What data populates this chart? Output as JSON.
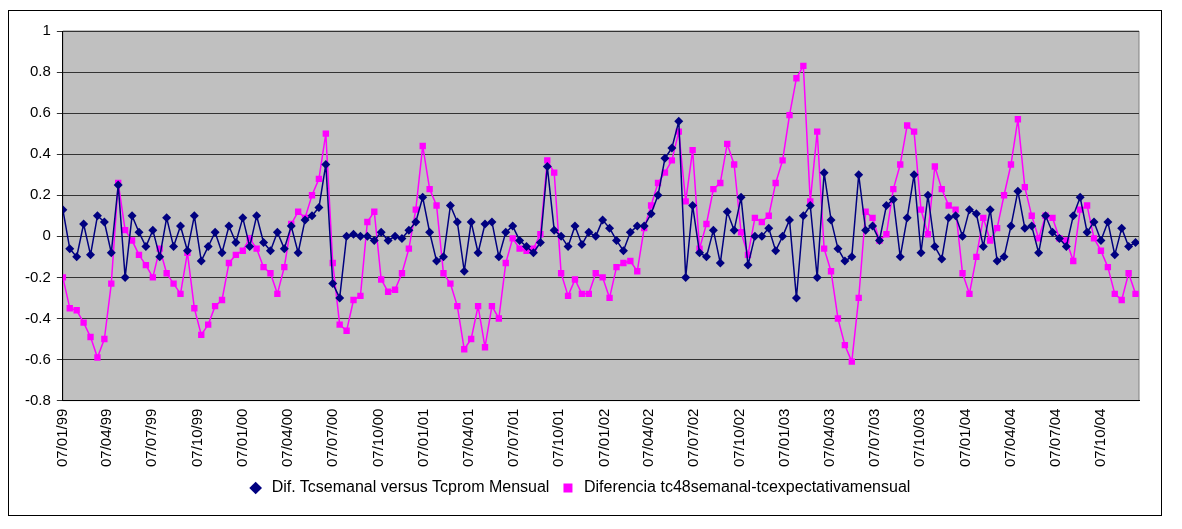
{
  "chart_data": {
    "type": "line",
    "x": [
      "1999-01-07",
      "1999-01-21",
      "1999-02-04",
      "1999-02-18",
      "1999-03-04",
      "1999-03-18",
      "1999-04-01",
      "1999-04-15",
      "1999-04-29",
      "1999-05-13",
      "1999-05-27",
      "1999-06-10",
      "1999-06-24",
      "1999-07-08",
      "1999-07-22",
      "1999-08-05",
      "1999-08-19",
      "1999-09-02",
      "1999-09-16",
      "1999-09-30",
      "1999-10-14",
      "1999-10-28",
      "1999-11-11",
      "1999-11-25",
      "1999-12-09",
      "1999-12-23",
      "2000-01-06",
      "2000-01-20",
      "2000-02-03",
      "2000-02-17",
      "2000-03-02",
      "2000-03-16",
      "2000-03-30",
      "2000-04-13",
      "2000-04-27",
      "2000-05-11",
      "2000-05-25",
      "2000-06-08",
      "2000-06-22",
      "2000-07-06",
      "2000-07-20",
      "2000-08-03",
      "2000-08-17",
      "2000-08-31",
      "2000-09-14",
      "2000-09-28",
      "2000-10-12",
      "2000-10-26",
      "2000-11-09",
      "2000-11-23",
      "2000-12-07",
      "2000-12-21",
      "2001-01-04",
      "2001-01-18",
      "2001-02-01",
      "2001-02-15",
      "2001-03-01",
      "2001-03-15",
      "2001-03-29",
      "2001-04-12",
      "2001-04-26",
      "2001-05-10",
      "2001-05-24",
      "2001-06-07",
      "2001-06-21",
      "2001-07-05",
      "2001-07-19",
      "2001-08-02",
      "2001-08-16",
      "2001-08-30",
      "2001-09-13",
      "2001-09-27",
      "2001-10-11",
      "2001-10-25",
      "2001-11-08",
      "2001-11-22",
      "2001-12-06",
      "2001-12-20",
      "2002-01-03",
      "2002-01-17",
      "2002-01-31",
      "2002-02-14",
      "2002-02-28",
      "2002-03-14",
      "2002-03-28",
      "2002-04-11",
      "2002-04-25",
      "2002-05-09",
      "2002-05-23",
      "2002-06-06",
      "2002-06-20",
      "2002-07-04",
      "2002-07-18",
      "2002-08-01",
      "2002-08-15",
      "2002-08-29",
      "2002-09-12",
      "2002-09-26",
      "2002-10-10",
      "2002-10-24",
      "2002-11-07",
      "2002-11-21",
      "2002-12-05",
      "2002-12-19",
      "2003-01-02",
      "2003-01-16",
      "2003-01-30",
      "2003-02-13",
      "2003-02-27",
      "2003-03-13",
      "2003-03-27",
      "2003-04-10",
      "2003-04-24",
      "2003-05-08",
      "2003-05-22",
      "2003-06-05",
      "2003-06-19",
      "2003-07-03",
      "2003-07-17",
      "2003-07-31",
      "2003-08-14",
      "2003-08-28",
      "2003-09-11",
      "2003-09-25",
      "2003-10-09",
      "2003-10-23",
      "2003-11-06",
      "2003-11-20",
      "2003-12-04",
      "2003-12-18",
      "2004-01-01",
      "2004-01-15",
      "2004-01-29",
      "2004-02-12",
      "2004-02-26",
      "2004-03-11",
      "2004-03-25",
      "2004-04-08",
      "2004-04-22",
      "2004-05-06",
      "2004-05-20",
      "2004-06-03",
      "2004-06-17",
      "2004-07-01",
      "2004-07-15",
      "2004-07-29",
      "2004-08-12",
      "2004-08-26",
      "2004-09-09",
      "2004-09-23",
      "2004-10-07",
      "2004-10-21",
      "2004-11-04",
      "2004-11-18",
      "2004-12-02",
      "2004-12-16"
    ],
    "series": [
      {
        "name": "Dif. Tcsemanal versus Tcprom Mensual",
        "color": "#000080",
        "marker": "diamond",
        "values": [
          0.13,
          -0.06,
          -0.1,
          0.06,
          -0.09,
          0.1,
          0.07,
          -0.08,
          0.25,
          -0.2,
          0.1,
          0.02,
          -0.05,
          0.03,
          -0.1,
          0.09,
          -0.05,
          0.05,
          -0.07,
          0.1,
          -0.12,
          -0.05,
          0.02,
          -0.08,
          0.05,
          -0.03,
          0.09,
          -0.05,
          0.1,
          -0.03,
          -0.07,
          0.02,
          -0.06,
          0.05,
          -0.08,
          0.08,
          0.1,
          0.14,
          0.35,
          -0.23,
          -0.3,
          0.0,
          0.01,
          0.0,
          0.0,
          -0.02,
          0.02,
          -0.02,
          0.0,
          -0.01,
          0.03,
          0.07,
          0.19,
          0.02,
          -0.12,
          -0.1,
          0.15,
          0.07,
          -0.17,
          0.07,
          -0.08,
          0.06,
          0.07,
          -0.1,
          0.02,
          0.05,
          -0.02,
          -0.05,
          -0.08,
          -0.03,
          0.34,
          0.03,
          0.0,
          -0.05,
          0.05,
          -0.04,
          0.02,
          0.0,
          0.08,
          0.04,
          -0.02,
          -0.07,
          0.02,
          0.05,
          0.05,
          0.11,
          0.2,
          0.38,
          0.43,
          0.56,
          -0.2,
          0.15,
          -0.08,
          -0.1,
          0.03,
          -0.13,
          0.12,
          0.03,
          0.19,
          -0.14,
          0.0,
          0.0,
          0.04,
          -0.07,
          0.0,
          0.08,
          -0.3,
          0.1,
          0.15,
          -0.2,
          0.31,
          0.08,
          -0.06,
          -0.12,
          -0.1,
          0.3,
          0.03,
          0.05,
          -0.02,
          0.15,
          0.18,
          -0.1,
          0.09,
          0.3,
          -0.08,
          0.2,
          -0.05,
          -0.11,
          0.09,
          0.1,
          0.0,
          0.13,
          0.11,
          -0.05,
          0.13,
          -0.12,
          -0.1,
          0.05,
          0.22,
          0.04,
          0.05,
          -0.08,
          0.1,
          0.02,
          -0.01,
          -0.05,
          0.1,
          0.19,
          0.02,
          0.07,
          -0.02,
          0.07,
          -0.09,
          0.04,
          -0.05,
          -0.03
        ]
      },
      {
        "name": "Diferencia tc48semanal-tcexpectativamensual",
        "color": "#ff00ff",
        "marker": "square",
        "values": [
          -0.2,
          -0.35,
          -0.36,
          -0.42,
          -0.49,
          -0.59,
          -0.5,
          -0.23,
          0.26,
          0.03,
          -0.02,
          -0.09,
          -0.14,
          -0.2,
          -0.06,
          -0.18,
          -0.23,
          -0.28,
          -0.08,
          -0.35,
          -0.48,
          -0.43,
          -0.34,
          -0.31,
          -0.13,
          -0.09,
          -0.07,
          -0.01,
          -0.06,
          -0.15,
          -0.18,
          -0.28,
          -0.15,
          0.06,
          0.12,
          0.09,
          0.2,
          0.28,
          0.5,
          -0.13,
          -0.43,
          -0.46,
          -0.31,
          -0.29,
          0.07,
          0.12,
          -0.21,
          -0.27,
          -0.26,
          -0.18,
          -0.06,
          0.13,
          0.44,
          0.23,
          0.15,
          -0.18,
          -0.23,
          -0.34,
          -0.55,
          -0.5,
          -0.34,
          -0.54,
          -0.34,
          -0.4,
          -0.13,
          -0.01,
          -0.06,
          -0.07,
          -0.06,
          0.01,
          0.37,
          0.31,
          -0.18,
          -0.29,
          -0.21,
          -0.28,
          -0.28,
          -0.18,
          -0.2,
          -0.3,
          -0.15,
          -0.13,
          -0.12,
          -0.17,
          0.04,
          0.15,
          0.26,
          0.31,
          0.37,
          0.51,
          0.17,
          0.42,
          -0.06,
          0.06,
          0.23,
          0.26,
          0.45,
          0.35,
          0.02,
          -0.09,
          0.09,
          0.07,
          0.1,
          0.26,
          0.37,
          0.59,
          0.77,
          0.83,
          0.17,
          0.51,
          -0.06,
          -0.17,
          -0.4,
          -0.53,
          -0.61,
          -0.3,
          0.12,
          0.09,
          -0.02,
          0.01,
          0.23,
          0.35,
          0.54,
          0.51,
          0.13,
          0.01,
          0.34,
          0.23,
          0.15,
          0.13,
          -0.18,
          -0.28,
          -0.1,
          0.09,
          -0.02,
          0.04,
          0.2,
          0.35,
          0.57,
          0.24,
          0.1,
          -0.01,
          0.1,
          0.09,
          -0.01,
          -0.02,
          -0.12,
          0.13,
          0.15,
          -0.01,
          -0.07,
          -0.15,
          -0.28,
          -0.31,
          -0.18,
          -0.28
        ]
      }
    ],
    "xlim": [
      "1999-01-07",
      "2004-12-23"
    ],
    "xticks": [
      {
        "value": "1999-01-07",
        "label": "07/01/99"
      },
      {
        "value": "1999-04-07",
        "label": "07/04/99"
      },
      {
        "value": "1999-07-07",
        "label": "07/07/99"
      },
      {
        "value": "1999-10-07",
        "label": "07/10/99"
      },
      {
        "value": "2000-01-07",
        "label": "07/01/00"
      },
      {
        "value": "2000-04-07",
        "label": "07/04/00"
      },
      {
        "value": "2000-07-07",
        "label": "07/07/00"
      },
      {
        "value": "2000-10-07",
        "label": "07/10/00"
      },
      {
        "value": "2001-01-07",
        "label": "07/01/01"
      },
      {
        "value": "2001-04-07",
        "label": "07/04/01"
      },
      {
        "value": "2001-07-07",
        "label": "07/07/01"
      },
      {
        "value": "2001-10-07",
        "label": "07/10/01"
      },
      {
        "value": "2002-01-07",
        "label": "07/01/02"
      },
      {
        "value": "2002-04-07",
        "label": "07/04/02"
      },
      {
        "value": "2002-07-07",
        "label": "07/07/02"
      },
      {
        "value": "2002-10-07",
        "label": "07/10/02"
      },
      {
        "value": "2003-01-07",
        "label": "07/01/03"
      },
      {
        "value": "2003-04-07",
        "label": "07/04/03"
      },
      {
        "value": "2003-07-07",
        "label": "07/07/03"
      },
      {
        "value": "2003-10-07",
        "label": "07/10/03"
      },
      {
        "value": "2004-01-07",
        "label": "07/01/04"
      },
      {
        "value": "2004-04-07",
        "label": "07/04/04"
      },
      {
        "value": "2004-07-07",
        "label": "07/07/04"
      },
      {
        "value": "2004-10-07",
        "label": "07/10/04"
      }
    ],
    "ylim": [
      -0.8,
      1
    ],
    "yticks": [
      -0.8,
      -0.6,
      -0.4,
      -0.2,
      0,
      0.2,
      0.4,
      0.6,
      0.8,
      1
    ],
    "grid": "y",
    "legend": "bottom",
    "line_style": "solid"
  }
}
